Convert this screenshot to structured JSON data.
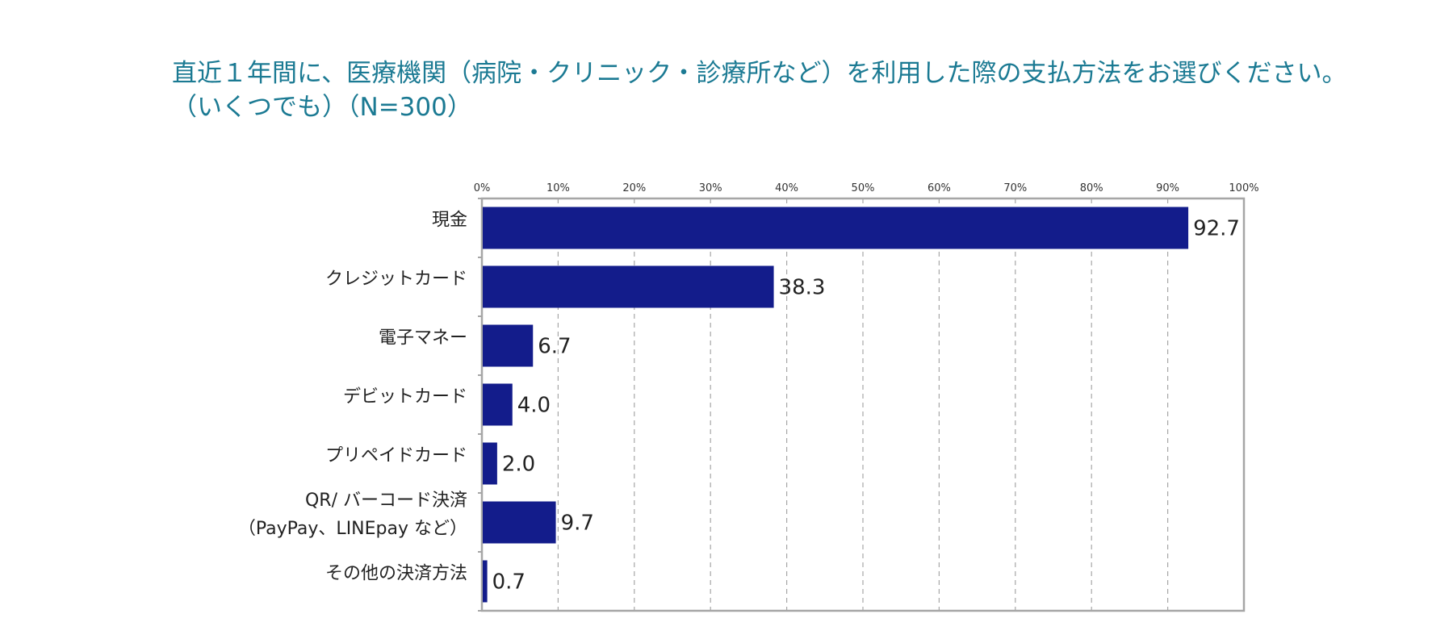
{
  "title": {
    "line1": "直近１年間に、医療機関（病院・クリニック・診療所など）を利用した際の支払方法をお選びください。",
    "line2": "（いくつでも）（N=300）"
  },
  "colors": {
    "bar": "#131c8b",
    "title": "#1b7a93",
    "frame": "#a6a6a6",
    "grid": "#a6a6a6"
  },
  "chart_data": {
    "type": "bar",
    "orientation": "horizontal",
    "title": "直近１年間に、医療機関（病院・クリニック・診療所など）を利用した際の支払方法をお選びください。（いくつでも）（N=300）",
    "xlabel": "",
    "ylabel": "",
    "xlim": [
      0,
      100
    ],
    "ticks": [
      "0%",
      "10%",
      "20%",
      "30%",
      "40%",
      "50%",
      "60%",
      "70%",
      "80%",
      "90%",
      "100%"
    ],
    "categories": [
      [
        "現金"
      ],
      [
        "クレジットカード"
      ],
      [
        "電子マネー"
      ],
      [
        "デビットカード"
      ],
      [
        "プリペイドカード"
      ],
      [
        "QR/ バーコード決済",
        "（PayPay、LINEpay など）"
      ],
      [
        "その他の決済方法"
      ]
    ],
    "values": [
      92.7,
      38.3,
      6.7,
      4.0,
      2.0,
      9.7,
      0.7
    ],
    "labels": [
      "92.7",
      "38.3",
      "6.7",
      "4.0",
      "2.0",
      "9.7",
      "0.7"
    ],
    "grid": true
  }
}
